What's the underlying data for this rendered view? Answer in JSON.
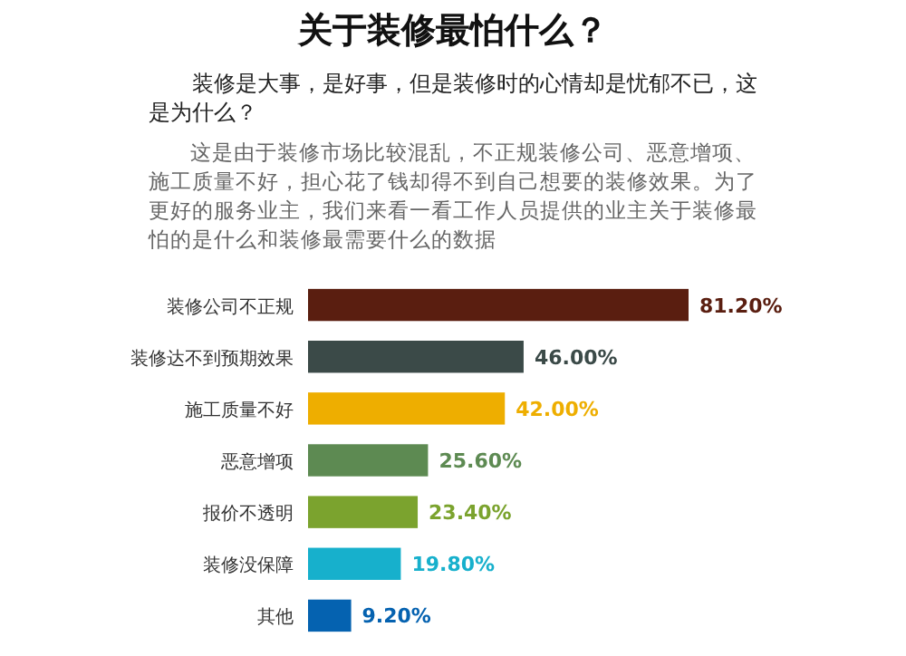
{
  "chart_data": {
    "type": "bar",
    "orientation": "horizontal",
    "title": "关于装修最怕什么？",
    "subtitle": "装修是大事，是好事，但是装修时的心情却是忧郁不已，这是为什么？",
    "annotations": [
      "这是由于装修市场比较混乱，不正规装修公司、恶意增项、施工质量不好，担心花了钱却得不到自己想要的装修效果。为了更好的服务业主，我们来看一看工作人员提供的业主关于装修最怕的是什么和装修最需要什么的数据"
    ],
    "categories": [
      "装修公司不正规",
      "装修达不到预期效果",
      "施工质量不好",
      "恶意增项",
      "报价不透明",
      "装修没保障",
      "其他"
    ],
    "values": [
      81.2,
      46.0,
      42.0,
      25.6,
      23.4,
      19.8,
      9.2
    ],
    "value_labels": [
      "81.20%",
      "46.00%",
      "42.00%",
      "25.60%",
      "23.40%",
      "19.80%",
      "9.20%"
    ],
    "colors": [
      "#5a1e10",
      "#3b4a48",
      "#eeae00",
      "#5d8a52",
      "#7ba32e",
      "#17b0cc",
      "#0562b0"
    ]
  }
}
